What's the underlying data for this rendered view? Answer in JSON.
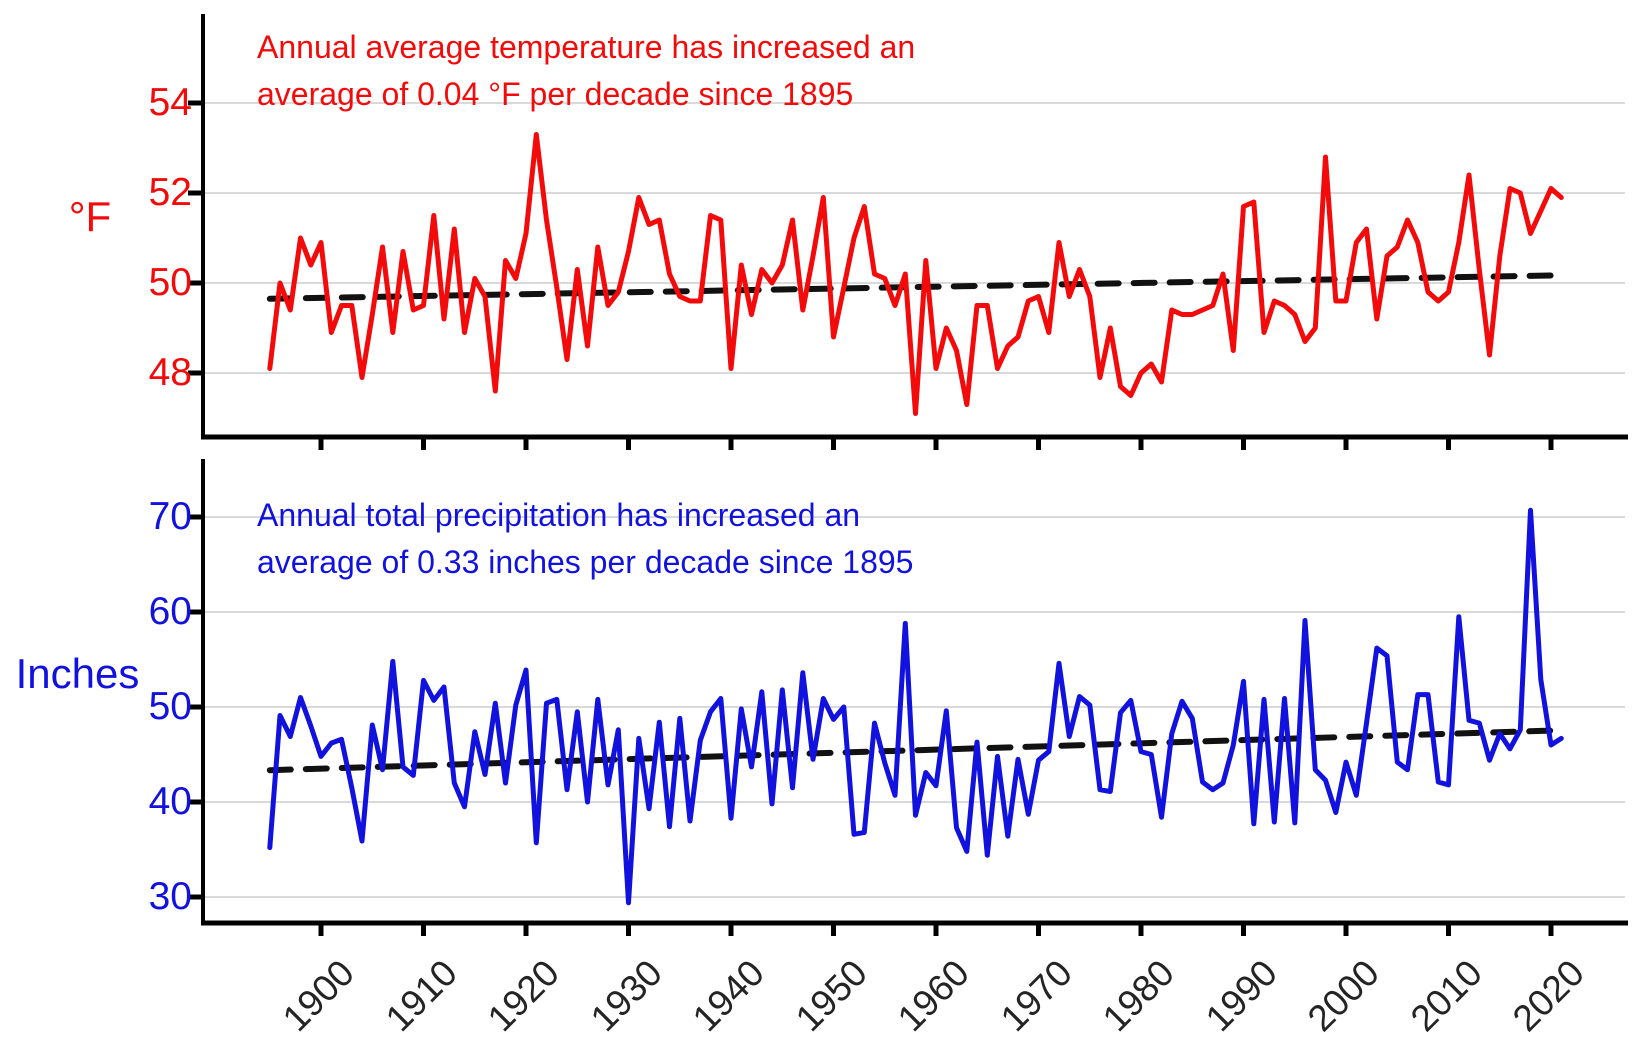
{
  "figure": {
    "background": "#ffffff",
    "axis_color": "#000000",
    "grid_color": "#d9d9d9",
    "x_tick_label_color": "#242424"
  },
  "chart_data": [
    {
      "type": "line",
      "ylabel": "°F",
      "annotation": [
        "Annual average temperature has increased an",
        "average of 0.04 °F per decade since 1895"
      ],
      "color": "#f30b0b",
      "trend_color": "#111111",
      "legend_position": "none",
      "grid": "horizontal",
      "y_ticks": [
        48,
        50,
        52,
        54
      ],
      "x_ticks": [
        1900,
        1910,
        1920,
        1930,
        1940,
        1950,
        1960,
        1970,
        1980,
        1990,
        2000,
        2010,
        2020
      ],
      "ylim": [
        46.8,
        55.9
      ],
      "xlim": [
        1888,
        2027
      ],
      "year_start": 1895,
      "year_end": 2021,
      "series": [
        {
          "name": "Annual average temperature (°F)",
          "values": [
            48.1,
            50.0,
            49.4,
            51.0,
            50.4,
            50.9,
            48.9,
            49.5,
            49.5,
            47.9,
            49.3,
            50.8,
            48.9,
            50.7,
            49.4,
            49.5,
            51.5,
            49.2,
            51.2,
            48.9,
            50.1,
            49.7,
            47.6,
            50.5,
            50.1,
            51.1,
            53.3,
            51.4,
            49.9,
            48.3,
            50.3,
            48.6,
            50.8,
            49.5,
            49.8,
            50.7,
            51.9,
            51.3,
            51.4,
            50.2,
            49.7,
            49.6,
            49.6,
            51.5,
            51.4,
            48.1,
            50.4,
            49.3,
            50.3,
            50.0,
            50.4,
            51.4,
            49.4,
            50.6,
            51.9,
            48.8,
            49.9,
            51.0,
            51.7,
            50.2,
            50.1,
            49.5,
            50.2,
            47.1,
            50.5,
            48.1,
            49.0,
            48.5,
            47.3,
            49.5,
            49.5,
            48.1,
            48.6,
            48.8,
            49.6,
            49.7,
            48.9,
            50.9,
            49.7,
            50.3,
            49.7,
            47.9,
            49.0,
            47.7,
            47.5,
            48.0,
            48.2,
            47.8,
            49.4,
            49.3,
            49.3,
            49.4,
            49.5,
            50.2,
            48.5,
            51.7,
            51.8,
            48.9,
            49.6,
            49.5,
            49.3,
            48.7,
            49.0,
            52.8,
            49.6,
            49.6,
            50.9,
            51.2,
            49.2,
            50.6,
            50.8,
            51.4,
            50.9,
            49.8,
            49.6,
            49.8,
            50.9,
            52.4,
            50.3,
            48.4,
            50.6,
            52.1,
            52.0,
            51.1,
            51.6,
            52.1,
            51.9
          ]
        },
        {
          "name": "Linear trend (0.04 °F per decade)",
          "trend": true,
          "start_value": 49.65,
          "end_value": 50.17
        }
      ]
    },
    {
      "type": "line",
      "ylabel": "Inches",
      "annotation": [
        "Annual total precipitation has increased an",
        "average of 0.33 inches per decade since 1895"
      ],
      "color": "#1212de",
      "trend_color": "#111111",
      "legend_position": "none",
      "grid": "horizontal",
      "y_ticks": [
        30,
        40,
        50,
        60,
        70
      ],
      "x_ticks": [
        1900,
        1910,
        1920,
        1930,
        1940,
        1950,
        1960,
        1970,
        1980,
        1990,
        2000,
        2010,
        2020
      ],
      "ylim": [
        26.5,
        75.0
      ],
      "xlim": [
        1888,
        2027
      ],
      "year_start": 1895,
      "year_end": 2021,
      "series": [
        {
          "name": "Annual total precipitation (inches)",
          "values": [
            35.2,
            49.1,
            46.9,
            51.0,
            48.0,
            44.8,
            46.2,
            46.6,
            41.5,
            35.9,
            48.1,
            43.4,
            54.8,
            43.7,
            42.8,
            52.8,
            50.7,
            52.1,
            42.0,
            39.5,
            47.4,
            42.9,
            50.4,
            42.0,
            50.2,
            53.9,
            35.7,
            50.4,
            50.8,
            41.3,
            49.5,
            40.0,
            50.8,
            41.8,
            47.6,
            29.4,
            46.7,
            39.3,
            48.4,
            37.4,
            48.8,
            38.0,
            46.5,
            49.5,
            50.9,
            38.3,
            49.8,
            43.7,
            51.6,
            39.8,
            51.8,
            41.5,
            53.6,
            44.5,
            50.9,
            48.7,
            50.0,
            36.6,
            36.8,
            48.3,
            44.1,
            40.7,
            58.8,
            38.6,
            43.1,
            41.7,
            49.6,
            37.3,
            34.8,
            46.3,
            34.4,
            44.8,
            36.4,
            44.5,
            38.7,
            44.4,
            45.3,
            54.6,
            46.9,
            51.1,
            50.2,
            41.3,
            41.1,
            49.4,
            50.7,
            45.3,
            45.0,
            38.4,
            47.2,
            50.6,
            48.8,
            42.1,
            41.3,
            42.0,
            46.0,
            52.7,
            37.7,
            50.8,
            37.9,
            50.9,
            37.8,
            59.1,
            43.4,
            42.3,
            38.9,
            44.2,
            40.7,
            48.3,
            56.2,
            55.4,
            44.2,
            43.4,
            51.3,
            51.3,
            42.1,
            41.8,
            59.5,
            48.6,
            48.3,
            44.4,
            47.2,
            45.6,
            47.6,
            70.7,
            52.9,
            46.0,
            46.7
          ]
        },
        {
          "name": "Linear trend (0.33 inches per decade)",
          "trend": true,
          "start_value": 43.35,
          "end_value": 47.55
        }
      ]
    }
  ]
}
